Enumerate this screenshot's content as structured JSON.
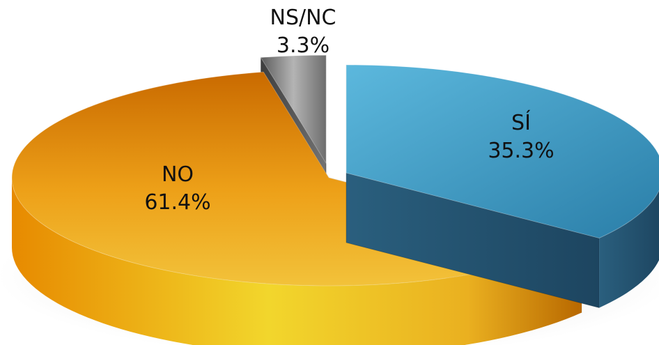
{
  "chart_data": {
    "type": "pie",
    "title": "",
    "slices": [
      {
        "name": "SÍ",
        "value_label": "35.3%",
        "value": 35.3,
        "color": "#2f86b0"
      },
      {
        "name": "NO",
        "value_label": "61.4%",
        "value": 61.4,
        "color": "#e08a10"
      },
      {
        "name": "NS/NC",
        "value_label": "3.3%",
        "value": 3.3,
        "color": "#8a8a8a"
      }
    ],
    "exploded": true,
    "three_d": true,
    "legend": "none"
  }
}
